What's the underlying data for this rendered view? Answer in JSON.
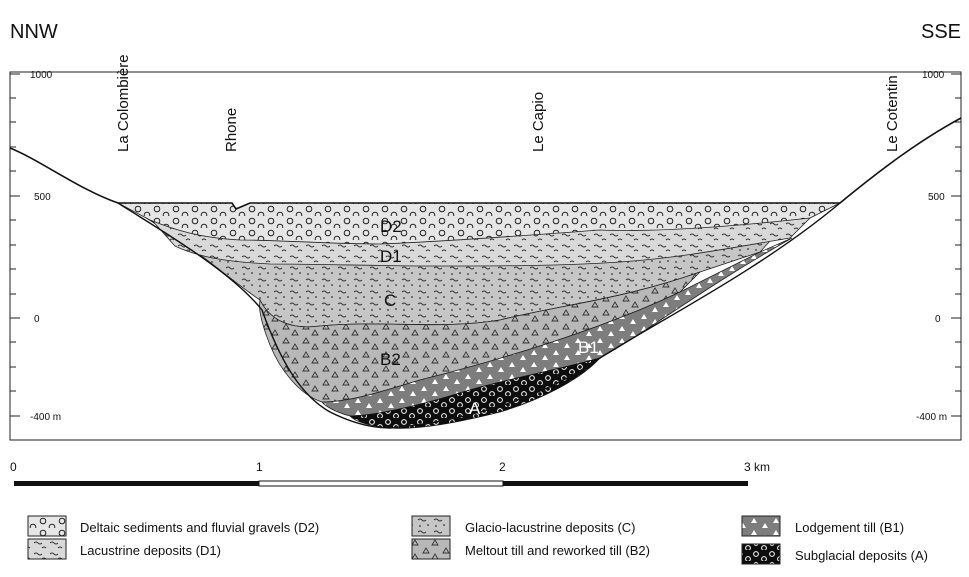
{
  "directions": {
    "left": "NNW",
    "right": "SSE"
  },
  "localities": [
    "La Colombière",
    "Rhone",
    "Le Capio",
    "Le Cotentin"
  ],
  "elevation_axis": {
    "left_labels": [
      "1000",
      "500",
      "0",
      "-400 m"
    ],
    "right_labels": [
      "1000",
      "500",
      "0",
      "-400 m"
    ]
  },
  "units_labels": {
    "d2": "D2",
    "d1": "D1",
    "c": "C",
    "b2": "B2",
    "b1": "B1",
    "a": "A"
  },
  "scale_bar": {
    "labels": [
      "0",
      "1",
      "2",
      "3 km"
    ]
  },
  "legend": [
    {
      "id": "d2",
      "label": "Deltaic sediments and fluvial gravels (D2)"
    },
    {
      "id": "d1",
      "label": "Lacustrine deposits (D1)"
    },
    {
      "id": "c",
      "label": "Glacio-lacustrine deposits (C)"
    },
    {
      "id": "b2",
      "label": "Meltout till and reworked till (B2)"
    },
    {
      "id": "b1",
      "label": "Lodgement till (B1)"
    },
    {
      "id": "a",
      "label": "Subglacial deposits (A)"
    }
  ],
  "colors": {
    "d2": "#e6e6e6",
    "d1": "#d9d9d9",
    "c": "#c6c6c6",
    "b2": "#b8b8b8",
    "b1": "#7d7d7d",
    "a": "#0d0d0d"
  }
}
